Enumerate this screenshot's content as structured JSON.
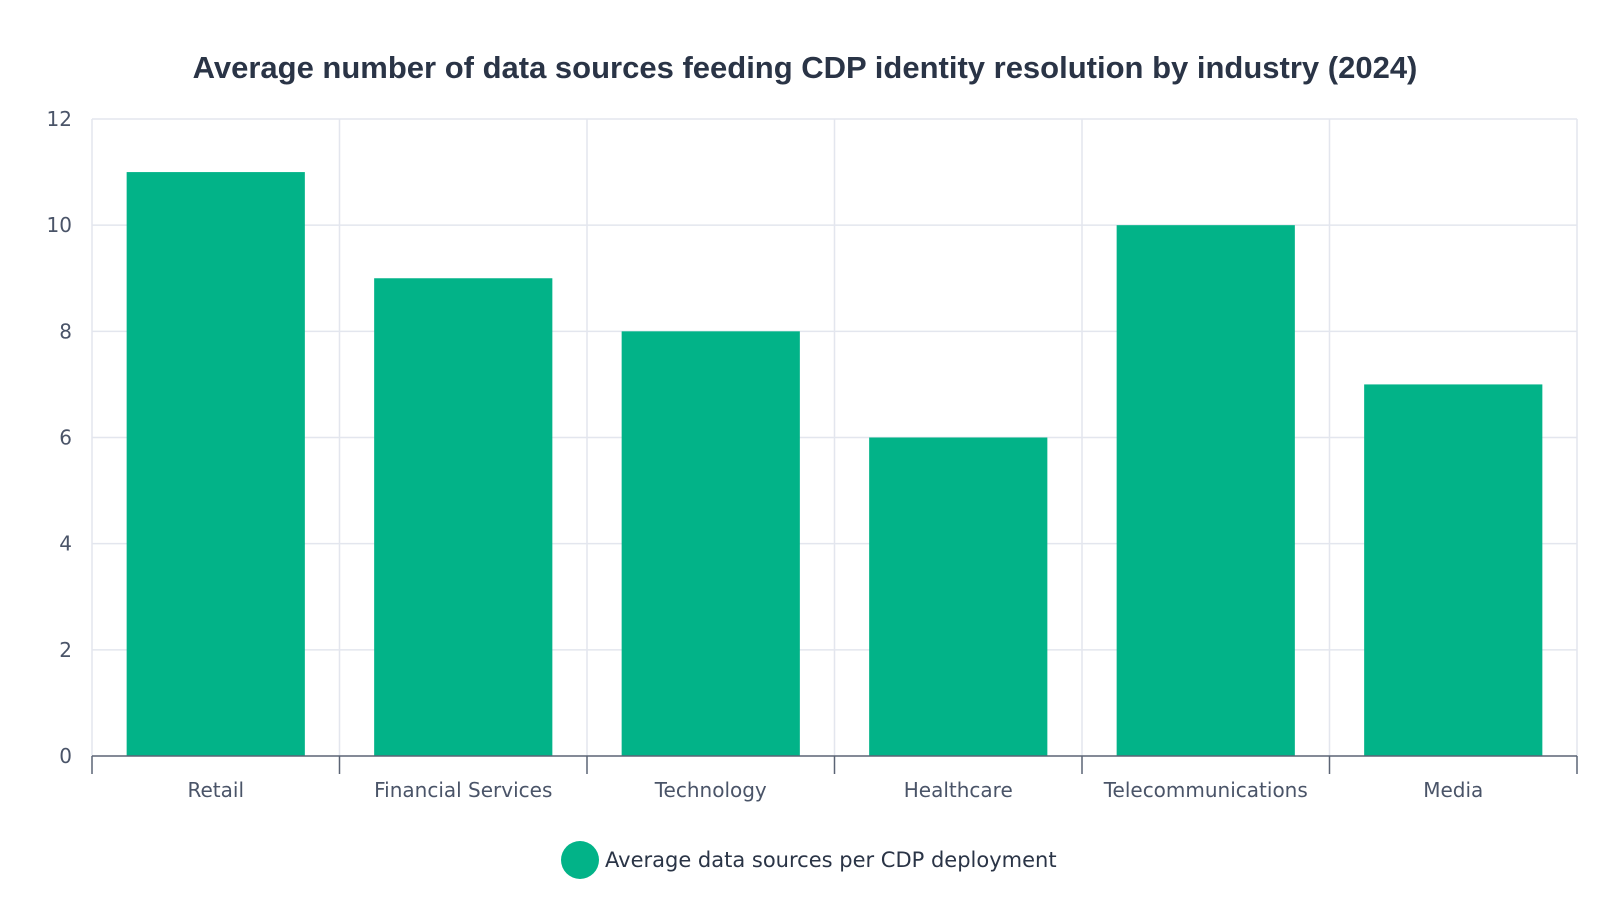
{
  "chart_data": {
    "type": "bar",
    "title": "Average number of data sources feeding CDP identity resolution by industry (2024)",
    "xlabel": "",
    "ylabel": "",
    "categories": [
      "Retail",
      "Financial Services",
      "Technology",
      "Healthcare",
      "Telecommunications",
      "Media"
    ],
    "series": [
      {
        "name": "Average data sources per CDP deployment",
        "values": [
          11,
          9,
          8,
          6,
          10,
          7
        ],
        "color": "#02b388"
      }
    ],
    "ylim": [
      0,
      12
    ],
    "yticks": [
      0,
      2,
      4,
      6,
      8,
      10,
      12
    ],
    "grid": true,
    "legend_position": "bottom-center"
  }
}
